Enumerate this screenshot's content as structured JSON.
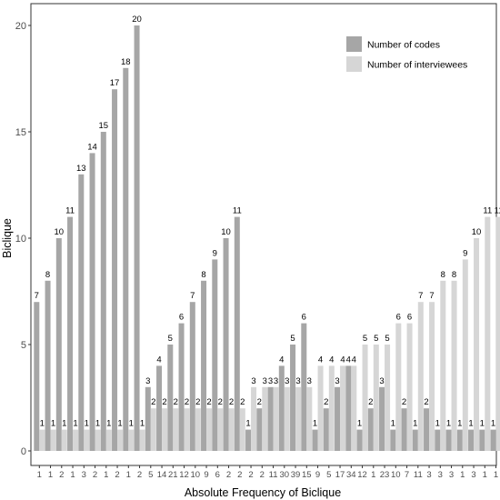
{
  "chart_data": {
    "type": "bar",
    "xlabel": "Absolute Frequency of Biclique",
    "ylabel": "Biclique",
    "ylim": [
      0,
      21
    ],
    "yticks": [
      0,
      5,
      10,
      15,
      20
    ],
    "grid": false,
    "legend_position": "top-right",
    "categories": [
      "1",
      "1",
      "2",
      "1",
      "3",
      "2",
      "1",
      "2",
      "1",
      "2",
      "5",
      "14",
      "21",
      "12",
      "10",
      "9",
      "6",
      "2",
      "2",
      "2",
      "2",
      "11",
      "30",
      "39",
      "15",
      "9",
      "5",
      "17",
      "34",
      "12",
      "1",
      "23",
      "10",
      "7",
      "11",
      "3",
      "3",
      "3",
      "1",
      "3",
      "1",
      "1"
    ],
    "series": [
      {
        "name": "Number of codes",
        "color": "#a6a6a6",
        "values": [
          7,
          8,
          10,
          11,
          13,
          14,
          15,
          17,
          18,
          20,
          3,
          4,
          5,
          6,
          7,
          8,
          9,
          10,
          11,
          1,
          2,
          3,
          4,
          5,
          6,
          1,
          2,
          3,
          4,
          1,
          2,
          3,
          1,
          2,
          1,
          2,
          1,
          1,
          1,
          1,
          1,
          1
        ]
      },
      {
        "name": "Number of interviewees",
        "color": "#d6d6d6",
        "values": [
          1,
          1,
          1,
          1,
          1,
          1,
          1,
          1,
          1,
          1,
          2,
          2,
          2,
          2,
          2,
          2,
          2,
          2,
          2,
          3,
          3,
          3,
          3,
          3,
          3,
          4,
          4,
          4,
          4,
          5,
          5,
          5,
          6,
          6,
          7,
          7,
          8,
          8,
          9,
          10,
          11,
          11
        ]
      }
    ]
  }
}
